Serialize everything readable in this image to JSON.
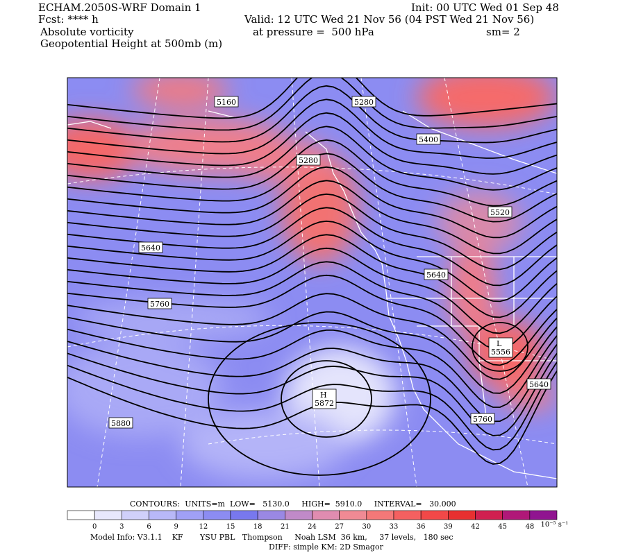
{
  "header": {
    "title": "ECHAM.2050S-WRF Domain 1",
    "init": "Init: 00 UTC Wed 01 Sep 48",
    "forecast": "Fcst: **** h",
    "valid": "Valid: 12 UTC Wed 21 Nov 56 (04 PST Wed 21 Nov 56)",
    "field": "Absolute vorticity",
    "pressure": "at pressure =  500 hPa",
    "smoothing": "sm= 2",
    "contour_field": "Geopotential Height at 500mb (m)"
  },
  "map": {
    "contour_labels": [
      "5160",
      "5280",
      "5400",
      "5280",
      "5520",
      "5640",
      "5640",
      "5760",
      "5880",
      "5760",
      "5640"
    ],
    "high": {
      "letter": "H",
      "value": "5872"
    },
    "low": {
      "letter": "L",
      "value": "5556"
    }
  },
  "footer": {
    "contours": "CONTOURS:  UNITS=m  LOW=   5130.0     HIGH=  5910.0     INTERVAL=   30.000",
    "colorbar_ticks": [
      0,
      3,
      6,
      9,
      12,
      15,
      18,
      21,
      24,
      27,
      30,
      33,
      36,
      39,
      42,
      45,
      48
    ],
    "colorbar_unit": "10⁻⁵ s⁻¹",
    "model_info": "Model Info: V3.1.1    KF       YSU PBL   Thompson     Noah LSM  36 km,     37 levels,   180 sec",
    "diff": "DIFF: simple KM: 2D Smagor"
  }
}
